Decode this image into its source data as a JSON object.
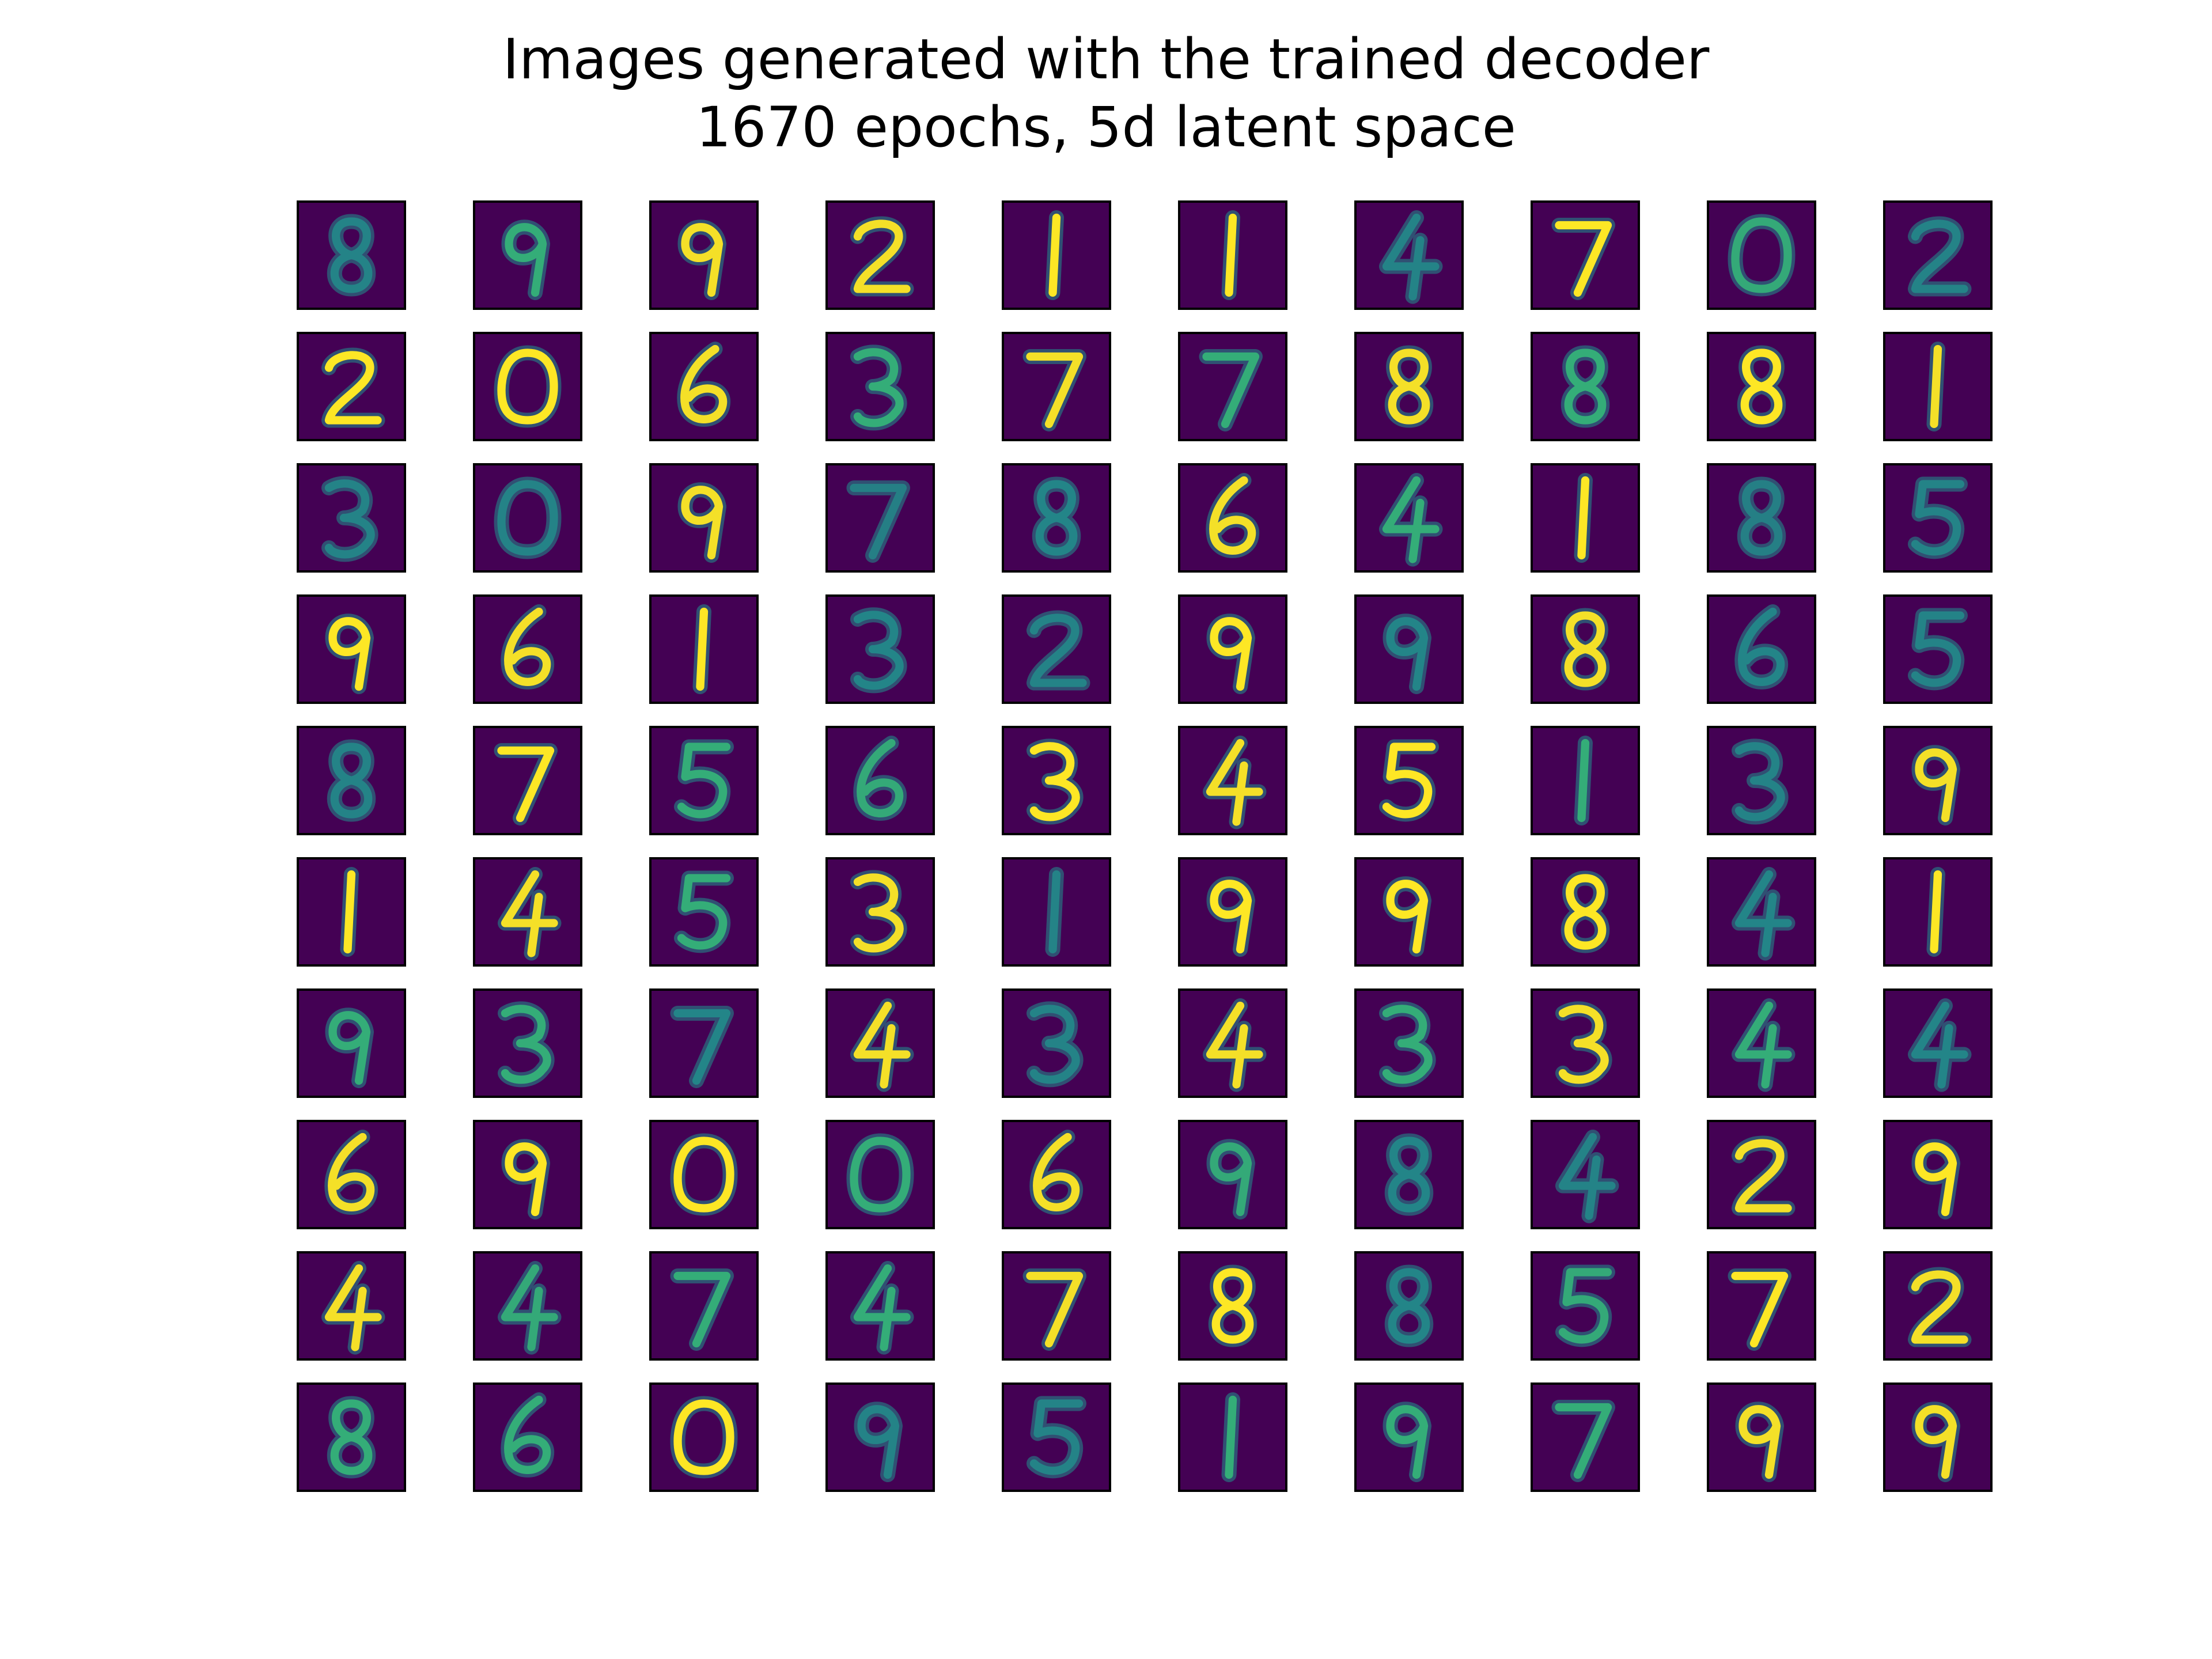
{
  "title": {
    "line1": "Images generated with the trained decoder",
    "line2": "1670 epochs, 5d latent space"
  },
  "grid": {
    "rows": 10,
    "cols": 10,
    "colors": {
      "background": "#440154",
      "stroke_bright": "#fde725",
      "stroke_mid": "#35b779",
      "stroke_dim": "#21918c",
      "border": "#000000"
    },
    "digits": [
      [
        "8",
        "9",
        "9",
        "2",
        "1",
        "1",
        "4",
        "7",
        "0",
        "2"
      ],
      [
        "2",
        "0",
        "6",
        "3",
        "7",
        "7",
        "8",
        "8",
        "8",
        "1"
      ],
      [
        "3",
        "0",
        "9",
        "7",
        "8",
        "6",
        "4",
        "1",
        "8",
        "5"
      ],
      [
        "9",
        "6",
        "1",
        "3",
        "2",
        "9",
        "9",
        "8",
        "6",
        "5"
      ],
      [
        "8",
        "7",
        "5",
        "6",
        "3",
        "4",
        "5",
        "1",
        "3",
        "9"
      ],
      [
        "1",
        "4",
        "5",
        "3",
        "1",
        "9",
        "9",
        "8",
        "4",
        "1"
      ],
      [
        "9",
        "3",
        "7",
        "4",
        "3",
        "4",
        "3",
        "3",
        "4",
        "4"
      ],
      [
        "6",
        "9",
        "0",
        "0",
        "6",
        "9",
        "8",
        "4",
        "2",
        "9"
      ],
      [
        "4",
        "4",
        "7",
        "4",
        "7",
        "8",
        "8",
        "5",
        "7",
        "2"
      ],
      [
        "8",
        "6",
        "0",
        "9",
        "5",
        "1",
        "9",
        "7",
        "9",
        "9"
      ]
    ],
    "brightness": [
      [
        0.5,
        0.8,
        0.9,
        0.9,
        1.0,
        1.0,
        0.5,
        1.0,
        0.7,
        0.5
      ],
      [
        1.0,
        1.0,
        0.9,
        0.8,
        0.9,
        0.8,
        0.9,
        0.8,
        1.0,
        0.9
      ],
      [
        0.5,
        0.5,
        0.9,
        0.4,
        0.6,
        0.9,
        0.8,
        1.0,
        0.4,
        0.5
      ],
      [
        1.0,
        0.9,
        1.0,
        0.6,
        0.5,
        1.0,
        0.6,
        0.9,
        0.6,
        0.5
      ],
      [
        0.5,
        1.0,
        0.8,
        0.7,
        1.0,
        0.9,
        1.0,
        0.8,
        0.5,
        0.9
      ],
      [
        1.0,
        0.9,
        0.8,
        0.9,
        0.5,
        1.0,
        1.0,
        1.0,
        0.6,
        1.0
      ],
      [
        0.8,
        0.8,
        0.6,
        0.9,
        0.5,
        0.9,
        0.8,
        0.9,
        0.8,
        0.6
      ],
      [
        0.9,
        1.0,
        1.0,
        0.8,
        0.9,
        0.7,
        0.6,
        0.5,
        0.9,
        1.0
      ],
      [
        0.9,
        0.7,
        0.8,
        0.8,
        0.9,
        1.0,
        0.6,
        0.7,
        1.0,
        0.9
      ],
      [
        0.8,
        0.8,
        1.0,
        0.5,
        0.5,
        0.8,
        0.8,
        0.8,
        0.9,
        0.9
      ]
    ]
  }
}
